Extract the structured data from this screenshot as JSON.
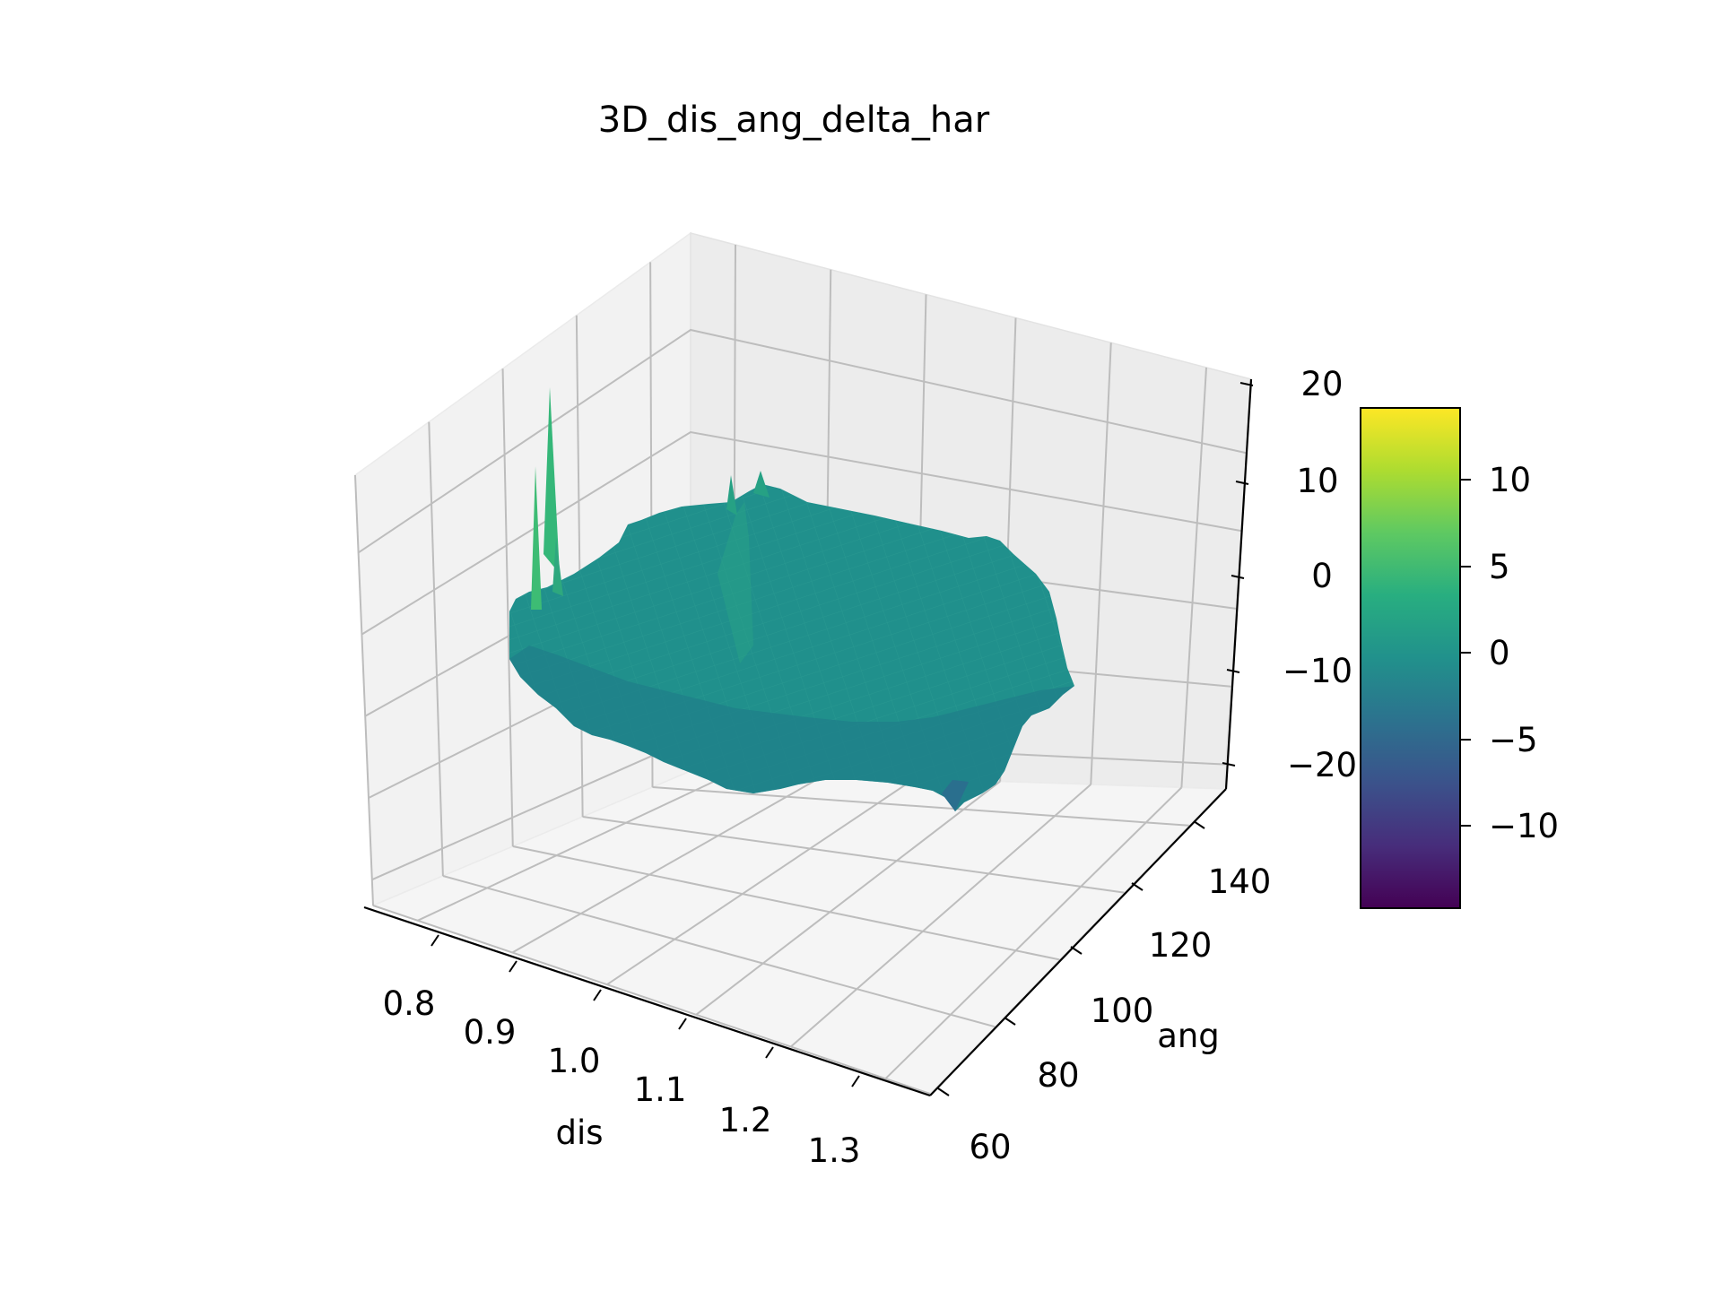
{
  "chart_data": {
    "type": "surface3d",
    "title": "3D_dis_ang_delta_har",
    "xlabel": "dis",
    "ylabel": "ang",
    "zlabel": "",
    "xlim": [
      0.75,
      1.35
    ],
    "ylim": [
      60,
      150
    ],
    "zlim": [
      -25,
      22
    ],
    "x_ticks": [
      "0.8",
      "0.9",
      "1.0",
      "1.1",
      "1.2",
      "1.3"
    ],
    "y_ticks": [
      "60",
      "80",
      "100",
      "120",
      "140"
    ],
    "z_ticks": [
      "−20",
      "−10",
      "0",
      "10",
      "20"
    ],
    "colormap": "viridis",
    "colorbar_ticks": [
      "10",
      "5",
      "0",
      "−5",
      "−10"
    ],
    "colorbar_range": [
      -15,
      14
    ],
    "grid": true,
    "surface_approx_value": 0,
    "spikes": [
      {
        "dis": 0.78,
        "ang": 118,
        "value": 19
      },
      {
        "dis": 0.76,
        "ang": 118,
        "value": 11
      },
      {
        "dis": 0.79,
        "ang": 120,
        "value": 8
      }
    ]
  }
}
